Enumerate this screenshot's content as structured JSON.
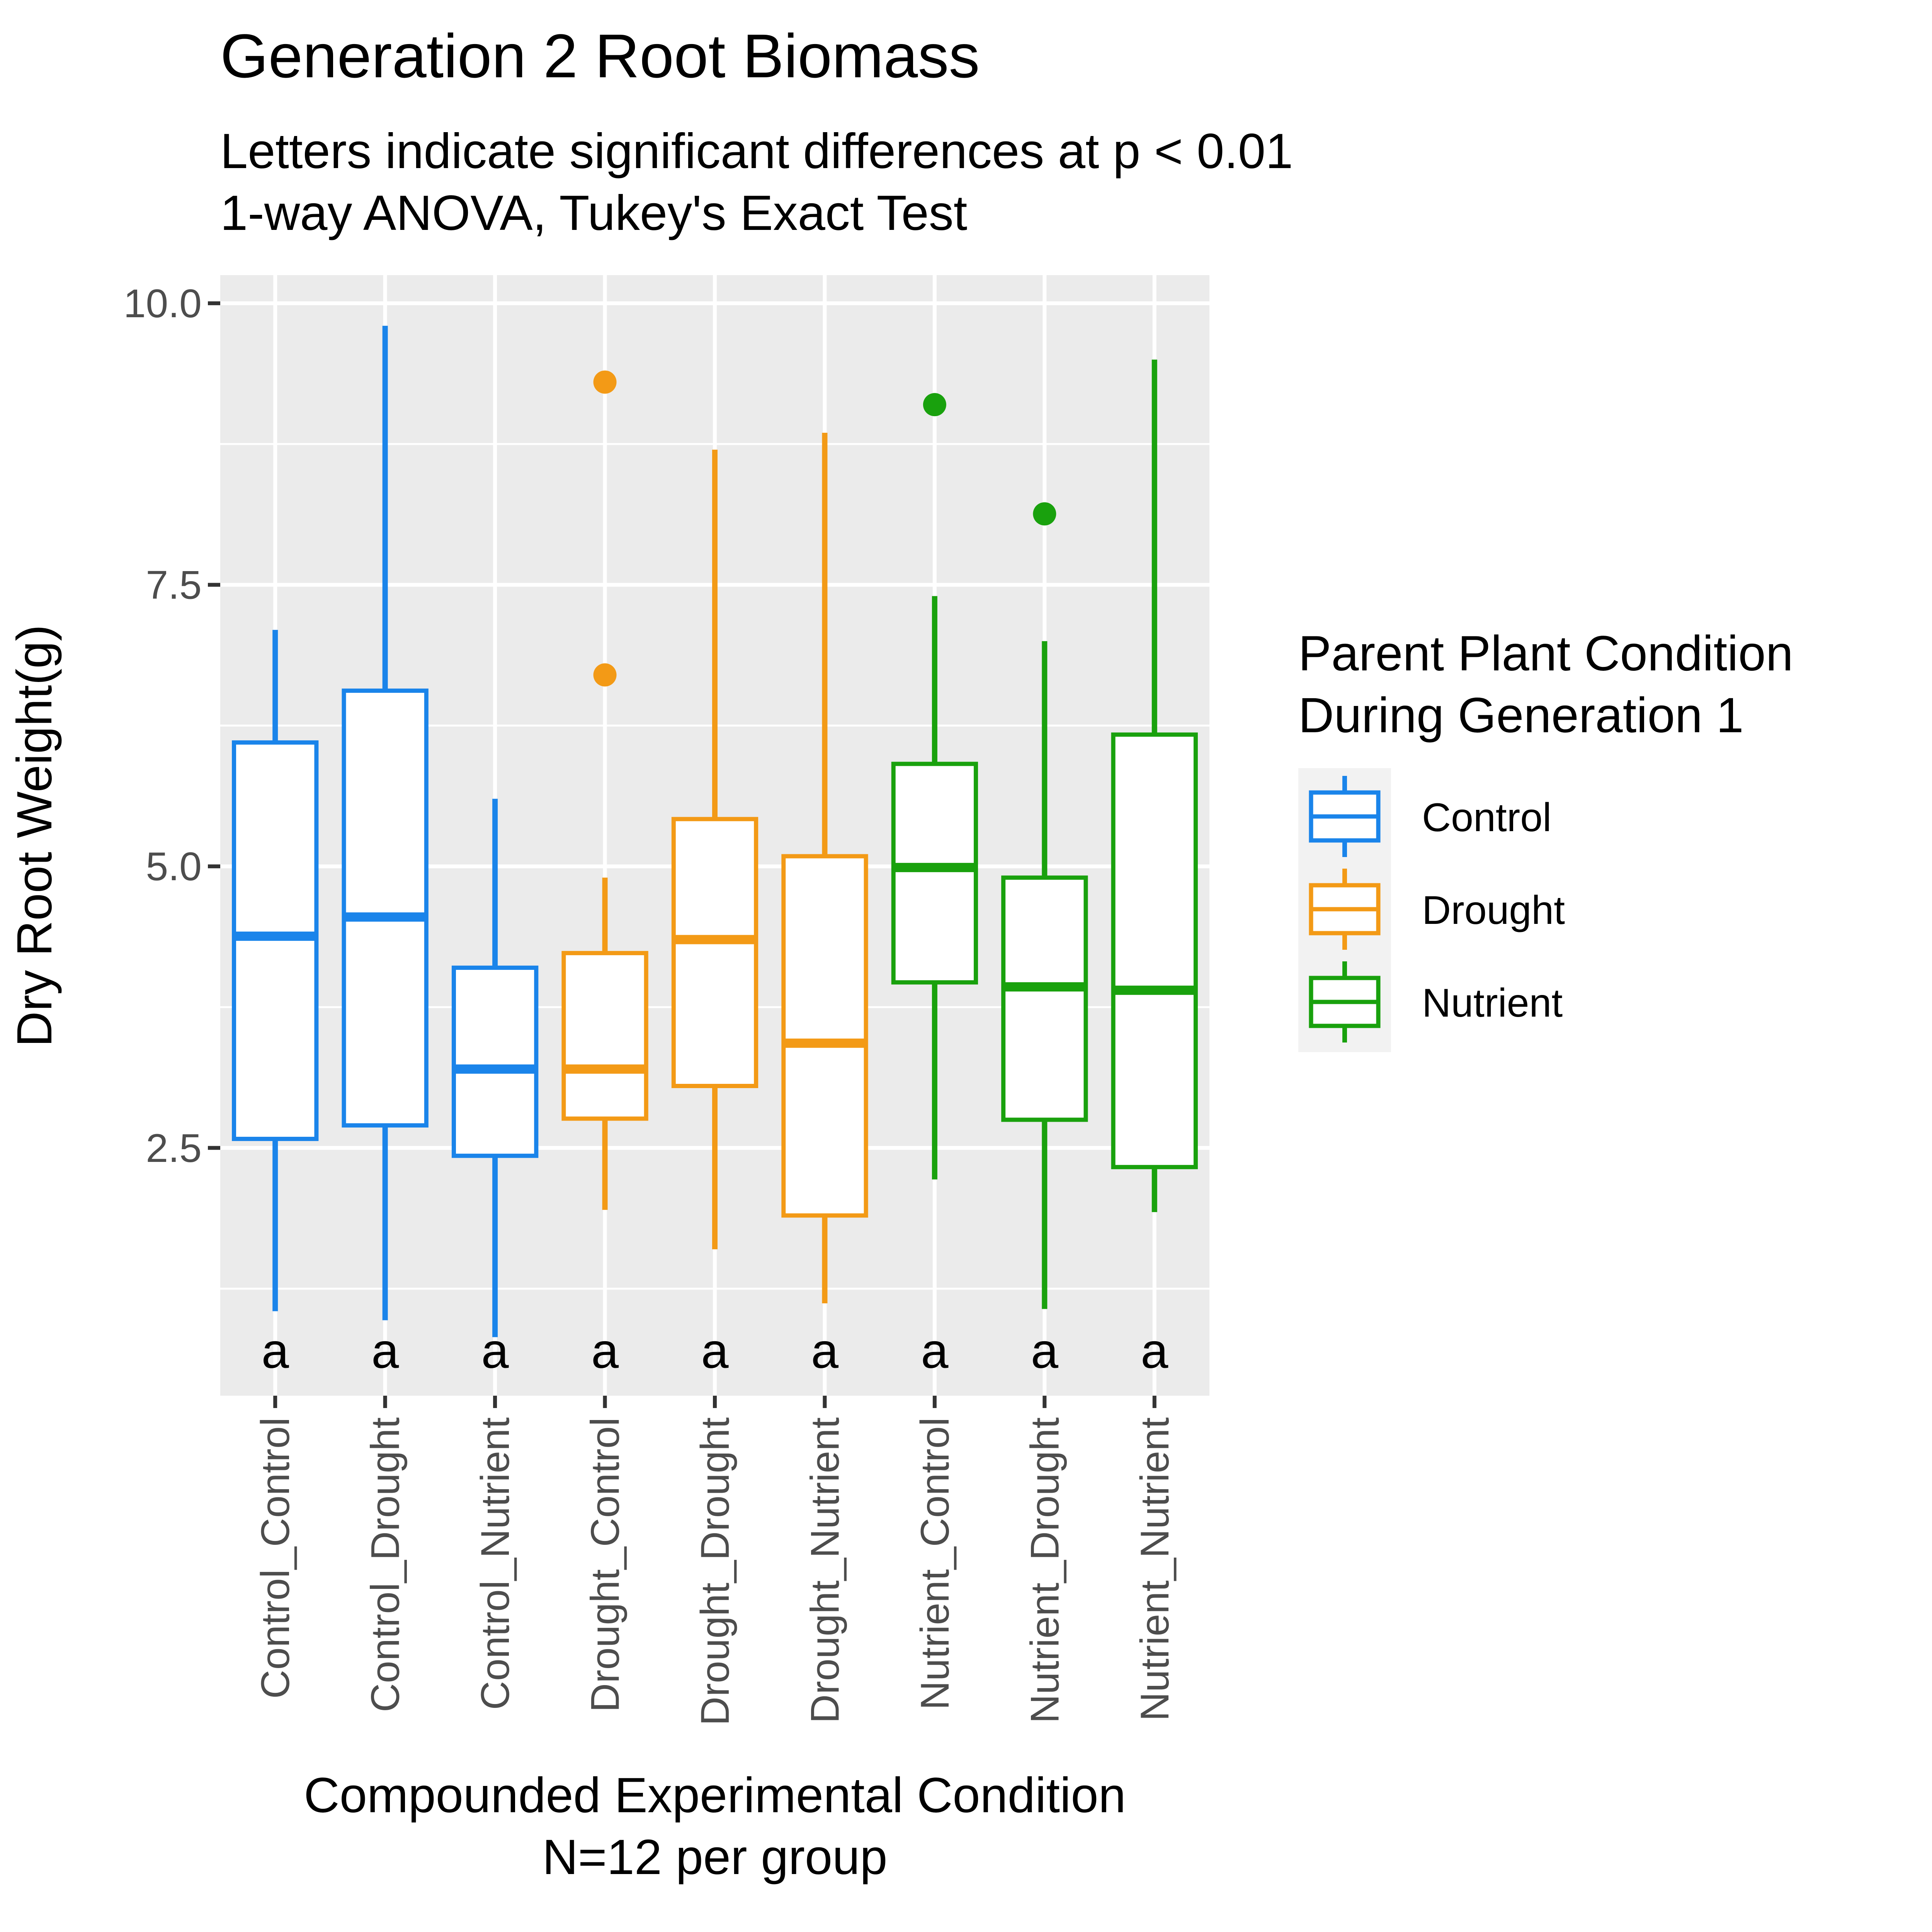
{
  "chart_data": {
    "type": "boxplot",
    "title": "Generation 2 Root Biomass",
    "subtitle_lines": [
      "Letters indicate significant differences at p < 0.01",
      "1-way ANOVA, Tukey's Exact Test"
    ],
    "xlabel_lines": [
      "Compounded Experimental Condition",
      "N=12 per group"
    ],
    "ylabel": "Dry Root Weight(g)",
    "ylim": [
      0.3,
      10.25
    ],
    "yticks": [
      {
        "value": 2.5,
        "label": "2.5"
      },
      {
        "value": 5.0,
        "label": "5.0"
      },
      {
        "value": 7.5,
        "label": "7.5"
      },
      {
        "value": 10.0,
        "label": "10.0"
      }
    ],
    "grid": true,
    "legend": {
      "title_lines": [
        "Parent Plant Condition",
        "During Generation 1"
      ],
      "placement": "right",
      "entries": [
        {
          "label": "Control",
          "color": "#1a84ea"
        },
        {
          "label": "Drought",
          "color": "#f39a16"
        },
        {
          "label": "Nutrient",
          "color": "#19a10d"
        }
      ]
    },
    "boxes": [
      {
        "category": "Control_Control",
        "group": "Control",
        "whisker_low": 1.05,
        "q1": 2.58,
        "median": 4.38,
        "q3": 6.1,
        "whisker_high": 7.1,
        "outliers": [],
        "letter": "a"
      },
      {
        "category": "Control_Drought",
        "group": "Control",
        "whisker_low": 0.97,
        "q1": 2.7,
        "median": 4.55,
        "q3": 6.56,
        "whisker_high": 9.8,
        "outliers": [],
        "letter": "a"
      },
      {
        "category": "Control_Nutrient",
        "group": "Control",
        "whisker_low": 0.82,
        "q1": 2.43,
        "median": 3.2,
        "q3": 4.1,
        "whisker_high": 5.6,
        "outliers": [],
        "letter": "a"
      },
      {
        "category": "Drought_Control",
        "group": "Drought",
        "whisker_low": 1.95,
        "q1": 2.76,
        "median": 3.2,
        "q3": 4.23,
        "whisker_high": 4.9,
        "outliers": [
          6.7,
          9.3
        ],
        "letter": "a"
      },
      {
        "category": "Drought_Drought",
        "group": "Drought",
        "whisker_low": 1.6,
        "q1": 3.05,
        "median": 4.35,
        "q3": 5.42,
        "whisker_high": 8.7,
        "outliers": [],
        "letter": "a"
      },
      {
        "category": "Drought_Nutrient",
        "group": "Drought",
        "whisker_low": 1.12,
        "q1": 1.9,
        "median": 3.43,
        "q3": 5.09,
        "whisker_high": 8.85,
        "outliers": [],
        "letter": "a"
      },
      {
        "category": "Nutrient_Control",
        "group": "Nutrient",
        "whisker_low": 2.22,
        "q1": 3.97,
        "median": 4.99,
        "q3": 5.91,
        "whisker_high": 7.4,
        "outliers": [
          9.1
        ],
        "letter": "a"
      },
      {
        "category": "Nutrient_Drought",
        "group": "Nutrient",
        "whisker_low": 1.07,
        "q1": 2.75,
        "median": 3.93,
        "q3": 4.9,
        "whisker_high": 7.0,
        "outliers": [
          8.13
        ],
        "letter": "a"
      },
      {
        "category": "Nutrient_Nutrient",
        "group": "Nutrient",
        "whisker_low": 1.93,
        "q1": 2.33,
        "median": 3.9,
        "q3": 6.17,
        "whisker_high": 9.5,
        "outliers": [],
        "letter": "a"
      }
    ]
  }
}
